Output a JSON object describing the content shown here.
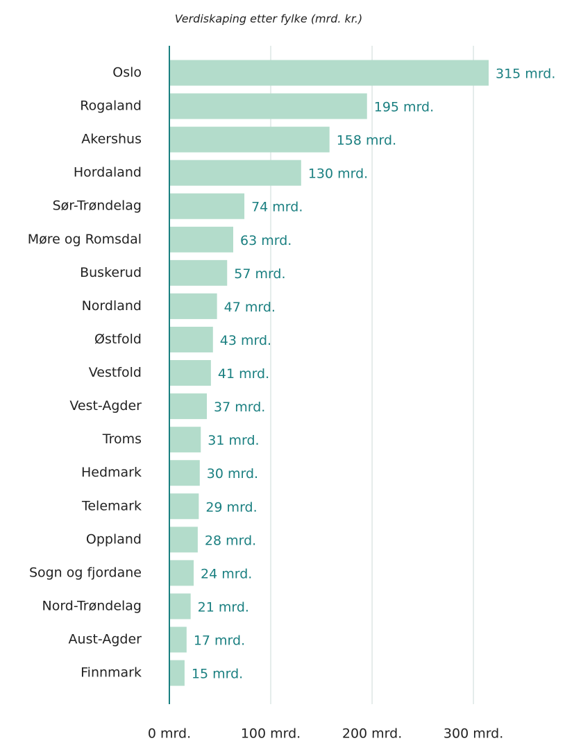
{
  "chart_data": {
    "type": "barh",
    "title": "Verdiskaping etter fylke (mrd. kr.)",
    "categories": [
      "Oslo",
      "Rogaland",
      "Akershus",
      "Hordaland",
      "Sør-Trøndelag",
      "Møre og Romsdal",
      "Buskerud",
      "Nordland",
      "Østfold",
      "Vestfold",
      "Vest-Agder",
      "Troms",
      "Hedmark",
      "Telemark",
      "Oppland",
      "Sogn og fjordane",
      "Nord-Trøndelag",
      "Aust-Agder",
      "Finnmark"
    ],
    "values": [
      315,
      195,
      158,
      130,
      74,
      63,
      57,
      47,
      43,
      41,
      37,
      31,
      30,
      29,
      28,
      24,
      21,
      17,
      15
    ],
    "value_labels": [
      "315 mrd.",
      "195 mrd.",
      "158 mrd.",
      "130 mrd.",
      "74 mrd.",
      "63 mrd.",
      "57 mrd.",
      "47 mrd.",
      "43 mrd.",
      "41 mrd.",
      "37 mrd.",
      "31 mrd.",
      "30 mrd.",
      "29 mrd.",
      "28 mrd.",
      "24 mrd.",
      "21 mrd.",
      "17 mrd.",
      "15 mrd."
    ],
    "color": "#b3dccb",
    "xlim": [
      0,
      315
    ],
    "xticks": [
      {
        "value": 0,
        "label": "0 mrd."
      },
      {
        "value": 100,
        "label": "100 mrd."
      },
      {
        "value": 200,
        "label": "200 mrd."
      },
      {
        "value": 300,
        "label": "300 mrd."
      }
    ],
    "grid": true
  }
}
